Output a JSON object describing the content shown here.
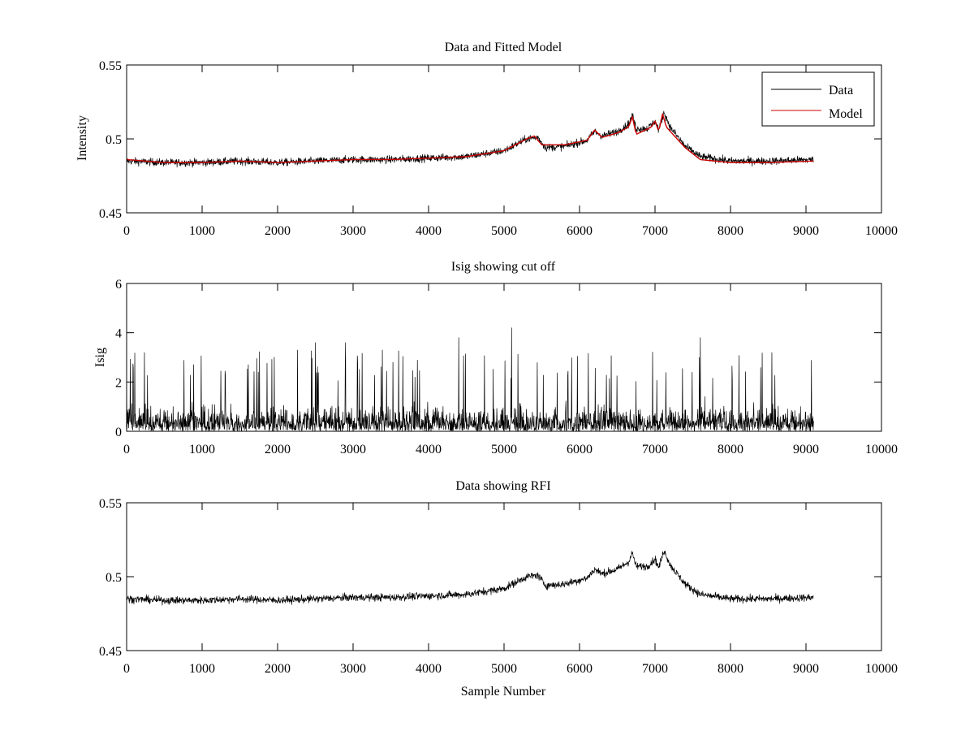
{
  "figure": {
    "background": "#ffffff"
  },
  "chart_data": [
    {
      "type": "line",
      "title": "Data and Fitted Model",
      "xlabel": "",
      "ylabel": "Intensity",
      "xlim": [
        0,
        10000
      ],
      "ylim": [
        0.45,
        0.55
      ],
      "xticks": [
        0,
        1000,
        2000,
        3000,
        4000,
        5000,
        6000,
        7000,
        8000,
        9000,
        10000
      ],
      "yticks": [
        0.45,
        0.5,
        0.55
      ],
      "ytick_labels": [
        "0.45",
        "0.5",
        "0.55"
      ],
      "grid": false,
      "legend": {
        "placement": "top-right",
        "entries": [
          "Data",
          "Model"
        ]
      },
      "series": [
        {
          "name": "Data",
          "color": "#000000",
          "kind": "noisy-signal",
          "x_range": [
            0,
            9100
          ],
          "noise_amplitude": 0.004,
          "baseline": [
            [
              0,
              0.485
            ],
            [
              500,
              0.484
            ],
            [
              1000,
              0.484
            ],
            [
              1500,
              0.485
            ],
            [
              2000,
              0.484
            ],
            [
              2500,
              0.485
            ],
            [
              3000,
              0.486
            ],
            [
              3500,
              0.486
            ],
            [
              4000,
              0.487
            ],
            [
              4500,
              0.488
            ],
            [
              5000,
              0.492
            ],
            [
              5300,
              0.5
            ],
            [
              5450,
              0.501
            ],
            [
              5550,
              0.494
            ],
            [
              5800,
              0.495
            ],
            [
              6100,
              0.499
            ],
            [
              6200,
              0.505
            ],
            [
              6300,
              0.502
            ],
            [
              6500,
              0.505
            ],
            [
              6650,
              0.51
            ],
            [
              6700,
              0.516
            ],
            [
              6750,
              0.507
            ],
            [
              6900,
              0.507
            ],
            [
              7000,
              0.512
            ],
            [
              7050,
              0.506
            ],
            [
              7120,
              0.518
            ],
            [
              7200,
              0.508
            ],
            [
              7400,
              0.495
            ],
            [
              7600,
              0.488
            ],
            [
              8000,
              0.485
            ],
            [
              8500,
              0.485
            ],
            [
              9100,
              0.486
            ]
          ]
        },
        {
          "name": "Model",
          "color": "#cc0000",
          "kind": "smooth",
          "points": [
            [
              0,
              0.486
            ],
            [
              500,
              0.484
            ],
            [
              1000,
              0.484
            ],
            [
              1500,
              0.485
            ],
            [
              2000,
              0.484
            ],
            [
              2500,
              0.485
            ],
            [
              3000,
              0.486
            ],
            [
              3500,
              0.486
            ],
            [
              4000,
              0.487
            ],
            [
              4500,
              0.488
            ],
            [
              5000,
              0.492
            ],
            [
              5300,
              0.5
            ],
            [
              5400,
              0.502
            ],
            [
              5500,
              0.496
            ],
            [
              5800,
              0.496
            ],
            [
              6100,
              0.499
            ],
            [
              6200,
              0.506
            ],
            [
              6300,
              0.501
            ],
            [
              6500,
              0.504
            ],
            [
              6650,
              0.508
            ],
            [
              6700,
              0.515
            ],
            [
              6750,
              0.503
            ],
            [
              6950,
              0.508
            ],
            [
              7000,
              0.512
            ],
            [
              7050,
              0.505
            ],
            [
              7100,
              0.517
            ],
            [
              7150,
              0.508
            ],
            [
              7400,
              0.494
            ],
            [
              7600,
              0.486
            ],
            [
              8000,
              0.484
            ],
            [
              8500,
              0.484
            ],
            [
              9100,
              0.485
            ]
          ]
        }
      ]
    },
    {
      "type": "line",
      "title": "Isig showing cut off",
      "xlabel": "",
      "ylabel": "Isig",
      "xlim": [
        0,
        10000
      ],
      "ylim": [
        0,
        6
      ],
      "xticks": [
        0,
        1000,
        2000,
        3000,
        4000,
        5000,
        6000,
        7000,
        8000,
        9000,
        10000
      ],
      "yticks": [
        0,
        2,
        4,
        6
      ],
      "ytick_labels": [
        "0",
        "2",
        "4",
        "6"
      ],
      "grid": false,
      "series": [
        {
          "color": "#000000",
          "kind": "noisy-magnitude",
          "x_range": [
            0,
            9100
          ],
          "typical_level": 0.8,
          "peak_max": 4.2,
          "notable_peaks": [
            [
              5100,
              4.2
            ],
            [
              4400,
              3.8
            ],
            [
              7600,
              3.8
            ],
            [
              2500,
              3.6
            ],
            [
              2900,
              3.6
            ]
          ]
        }
      ]
    },
    {
      "type": "line",
      "title": "Data showing RFI",
      "xlabel": "Sample Number",
      "ylabel": "",
      "xlim": [
        0,
        10000
      ],
      "ylim": [
        0.45,
        0.55
      ],
      "xticks": [
        0,
        1000,
        2000,
        3000,
        4000,
        5000,
        6000,
        7000,
        8000,
        9000,
        10000
      ],
      "yticks": [
        0.45,
        0.5,
        0.55
      ],
      "ytick_labels": [
        "0.45",
        "0.5",
        "0.55"
      ],
      "grid": false,
      "series": [
        {
          "color": "#000000",
          "kind": "noisy-signal",
          "x_range": [
            0,
            9100
          ],
          "noise_amplitude": 0.004,
          "baseline": [
            [
              0,
              0.485
            ],
            [
              500,
              0.484
            ],
            [
              1000,
              0.484
            ],
            [
              1500,
              0.485
            ],
            [
              2000,
              0.484
            ],
            [
              2500,
              0.485
            ],
            [
              3000,
              0.486
            ],
            [
              3500,
              0.486
            ],
            [
              4000,
              0.487
            ],
            [
              4500,
              0.488
            ],
            [
              5000,
              0.492
            ],
            [
              5300,
              0.5
            ],
            [
              5450,
              0.501
            ],
            [
              5550,
              0.494
            ],
            [
              5800,
              0.495
            ],
            [
              6100,
              0.499
            ],
            [
              6200,
              0.505
            ],
            [
              6300,
              0.502
            ],
            [
              6500,
              0.505
            ],
            [
              6650,
              0.51
            ],
            [
              6700,
              0.516
            ],
            [
              6750,
              0.507
            ],
            [
              6900,
              0.507
            ],
            [
              7000,
              0.512
            ],
            [
              7050,
              0.506
            ],
            [
              7120,
              0.518
            ],
            [
              7200,
              0.508
            ],
            [
              7400,
              0.495
            ],
            [
              7600,
              0.488
            ],
            [
              8000,
              0.485
            ],
            [
              8500,
              0.485
            ],
            [
              9100,
              0.486
            ]
          ]
        }
      ]
    }
  ]
}
